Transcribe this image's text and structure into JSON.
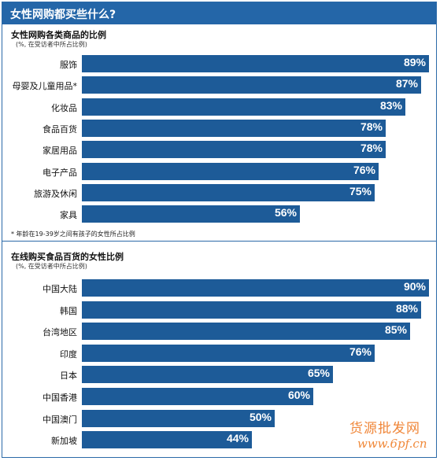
{
  "header": {
    "title": "女性网购都买些什么?"
  },
  "chart_data": [
    {
      "type": "bar",
      "title": "女性网购各类商品的比例",
      "subtitle": "(%, 在受访者中所占比例)",
      "categories": [
        "服饰",
        "母婴及儿童用品*",
        "化妆品",
        "食品百货",
        "家居用品",
        "电子产品",
        "旅游及休闲",
        "家具"
      ],
      "values": [
        89,
        87,
        83,
        78,
        78,
        76,
        75,
        56
      ],
      "value_labels": [
        "89%",
        "87%",
        "83%",
        "78%",
        "78%",
        "76%",
        "75%",
        "56%"
      ],
      "xlim": [
        0,
        89
      ],
      "color": "#1d5b98",
      "footnote": "* 年龄在19-39岁之间有孩子的女性所占比例"
    },
    {
      "type": "bar",
      "title": "在线购买食品百货的女性比例",
      "subtitle": "(%, 在受访者中所占比例)",
      "categories": [
        "中国大陆",
        "韩国",
        "台湾地区",
        "印度",
        "日本",
        "中国香港",
        "中国澳门",
        "新加坡"
      ],
      "values": [
        90,
        88,
        85,
        76,
        65,
        60,
        50,
        44
      ],
      "value_labels": [
        "90%",
        "88%",
        "85%",
        "76%",
        "65%",
        "60%",
        "50%",
        "44%"
      ],
      "xlim": [
        0,
        90
      ],
      "color": "#1d5b98"
    }
  ],
  "watermark": {
    "text_cn": "货源批发网",
    "url": "www.6pf.cn"
  }
}
